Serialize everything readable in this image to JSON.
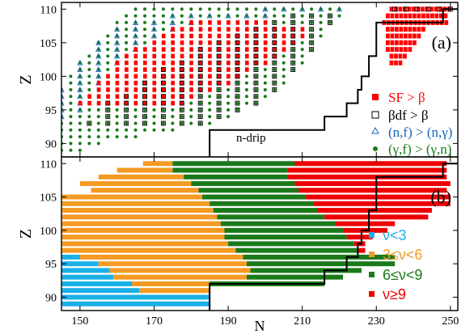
{
  "chart_data": [
    {
      "panel_label": "(a)",
      "type": "scatter",
      "xlabel": "",
      "ylabel": "Z",
      "xlim": [
        145,
        252
      ],
      "ylim": [
        88,
        111
      ],
      "yticks": [
        90,
        95,
        100,
        105,
        110
      ],
      "annotation": "n-drip",
      "legend_position": "right",
      "series": [
        {
          "name": "SF > β",
          "marker": "filled-square",
          "color": "#ff0000"
        },
        {
          "name": "βdf > β",
          "marker": "open-square",
          "color": "#000000"
        },
        {
          "name": "(n,f) > (n,γ)",
          "marker": "open-triangle",
          "color": "#1565c0"
        },
        {
          "name": "(γ,f) > (γ,n)",
          "marker": "filled-circle",
          "color": "#1a7a1a"
        }
      ],
      "region_rows": [
        {
          "z": 110,
          "green": [
            165,
            222
          ],
          "red": [],
          "open_sq": [],
          "tri": [
            200,
            222
          ]
        },
        {
          "z": 109,
          "green": [
            162,
            221
          ],
          "red": [],
          "open_sq": [
            205,
            221
          ],
          "tri": [
            175,
            200
          ]
        },
        {
          "z": 108,
          "green": [
            160,
            218
          ],
          "red": [
            180,
            200
          ],
          "open_sq": [
            200,
            218
          ],
          "tri": [
            162,
            180
          ]
        },
        {
          "z": 107,
          "green": [
            158,
            217
          ],
          "red": [
            175,
            212
          ],
          "open_sq": [
            195,
            217
          ],
          "tri": [
            160,
            175
          ]
        },
        {
          "z": 106,
          "green": [
            157,
            216
          ],
          "red": [
            172,
            210
          ],
          "open_sq": [
            190,
            216
          ],
          "tri": [
            158,
            172
          ]
        },
        {
          "z": 105,
          "green": [
            155,
            214
          ],
          "red": [
            168,
            208
          ],
          "open_sq": [
            185,
            214
          ],
          "tri": [
            155,
            168
          ]
        },
        {
          "z": 104,
          "green": [
            153,
            213
          ],
          "red": [
            165,
            206
          ],
          "open_sq": [
            182,
            213
          ],
          "tri": [
            153,
            165
          ]
        },
        {
          "z": 103,
          "green": [
            151,
            211
          ],
          "red": [
            162,
            203
          ],
          "open_sq": [
            178,
            211
          ],
          "tri": [
            151,
            162
          ]
        },
        {
          "z": 102,
          "green": [
            150,
            210
          ],
          "red": [
            160,
            200
          ],
          "open_sq": [
            175,
            210
          ],
          "tri": [
            150,
            160
          ]
        },
        {
          "z": 101,
          "green": [
            149,
            208
          ],
          "red": [
            158,
            197
          ],
          "open_sq": [
            172,
            208
          ],
          "tri": [
            149,
            158
          ]
        },
        {
          "z": 100,
          "green": [
            147,
            207
          ],
          "red": [
            156,
            194
          ],
          "open_sq": [
            169,
            207
          ],
          "tri": [
            147,
            156
          ]
        },
        {
          "z": 99,
          "green": [
            146,
            205
          ],
          "red": [
            155,
            190
          ],
          "open_sq": [
            166,
            205
          ],
          "tri": [
            146,
            155
          ]
        },
        {
          "z": 98,
          "green": [
            145,
            203
          ],
          "red": [
            153,
            186
          ],
          "open_sq": [
            163,
            203
          ],
          "tri": [
            145,
            153
          ]
        },
        {
          "z": 97,
          "green": [
            145,
            201
          ],
          "red": [
            152,
            182
          ],
          "open_sq": [
            160,
            201
          ],
          "tri": [
            145,
            152
          ]
        },
        {
          "z": 96,
          "green": [
            145,
            198
          ],
          "red": [
            150,
            178
          ],
          "open_sq": [
            157,
            198
          ],
          "tri": [
            145,
            150
          ]
        },
        {
          "z": 95,
          "green": [
            145,
            194
          ],
          "red": [],
          "open_sq": [
            155,
            194
          ],
          "tri": [
            145,
            150
          ]
        },
        {
          "z": 94,
          "green": [
            145,
            190
          ],
          "red": [],
          "open_sq": [
            153,
            190
          ],
          "tri": [
            145,
            148
          ]
        },
        {
          "z": 93,
          "green": [
            145,
            186
          ],
          "red": [],
          "open_sq": [
            152,
            186
          ],
          "tri": []
        },
        {
          "z": 92,
          "green": [
            145,
            175
          ],
          "red": [],
          "open_sq": [],
          "tri": []
        },
        {
          "z": 91,
          "green": [
            145,
            165
          ],
          "red": [],
          "open_sq": [],
          "tri": []
        },
        {
          "z": 90,
          "green": [
            145,
            155
          ],
          "red": [],
          "open_sq": [],
          "tri": []
        },
        {
          "z": 89,
          "green": [
            145,
            150
          ],
          "red": [],
          "open_sq": [],
          "tri": []
        }
      ],
      "right_rows": [
        {
          "z": 110,
          "red": [
            234,
            250
          ],
          "open_sq": [
            235,
            250
          ]
        },
        {
          "z": 109,
          "red": [
            233,
            249
          ],
          "open_sq": []
        },
        {
          "z": 108,
          "red": [
            232,
            249
          ],
          "open_sq": []
        },
        {
          "z": 107,
          "red": [
            233,
            243
          ],
          "open_sq": []
        },
        {
          "z": 106,
          "red": [
            233,
            242
          ],
          "open_sq": []
        },
        {
          "z": 105,
          "red": [
            233,
            241
          ],
          "open_sq": []
        },
        {
          "z": 104,
          "red": [
            233,
            240
          ],
          "open_sq": []
        },
        {
          "z": 103,
          "red": [
            234,
            238
          ],
          "open_sq": []
        },
        {
          "z": 102,
          "red": [
            234,
            237
          ],
          "open_sq": []
        }
      ],
      "ndrip_steps": [
        [
          185,
          88
        ],
        [
          185,
          92
        ],
        [
          216,
          92
        ],
        [
          216,
          94
        ],
        [
          222,
          94
        ],
        [
          222,
          96
        ],
        [
          225,
          96
        ],
        [
          225,
          98
        ],
        [
          226,
          98
        ],
        [
          226,
          100
        ],
        [
          228,
          100
        ],
        [
          228,
          103
        ],
        [
          230,
          103
        ],
        [
          230,
          108
        ],
        [
          248,
          108
        ],
        [
          248,
          110
        ],
        [
          252,
          110
        ]
      ]
    },
    {
      "panel_label": "(b)",
      "type": "bar",
      "orientation": "horizontal",
      "xlabel": "N",
      "ylabel": "Z",
      "xlim": [
        145,
        252
      ],
      "ylim": [
        88,
        111
      ],
      "xticks": [
        150,
        170,
        190,
        210,
        230,
        250
      ],
      "yticks": [
        90,
        95,
        100,
        105,
        110
      ],
      "legend_position": "right",
      "series": [
        {
          "name": "ν<3",
          "color": "#1ab0e8"
        },
        {
          "name": "3≤ν<6",
          "color": "#f59a23"
        },
        {
          "name": "6≤ν<9",
          "color": "#1a7a1a"
        },
        {
          "name": "ν≥9",
          "color": "#ee0000"
        }
      ],
      "rows": [
        {
          "z": 110,
          "start": 167,
          "b1": 167,
          "b2": 175,
          "b3": 208,
          "end": 249
        },
        {
          "z": 109,
          "start": 160,
          "b1": 160,
          "b2": 175,
          "b3": 206,
          "end": 249
        },
        {
          "z": 108,
          "start": 155,
          "b1": 155,
          "b2": 178,
          "b3": 206,
          "end": 249
        },
        {
          "z": 107,
          "start": 150,
          "b1": 150,
          "b2": 180,
          "b3": 208,
          "end": 250
        },
        {
          "z": 106,
          "start": 153,
          "b1": 153,
          "b2": 182,
          "b3": 209,
          "end": 249
        },
        {
          "z": 105,
          "start": 145,
          "b1": 145,
          "b2": 183,
          "b3": 211,
          "end": 250
        },
        {
          "z": 104,
          "start": 145,
          "b1": 145,
          "b2": 185,
          "b3": 213,
          "end": 250
        },
        {
          "z": 103,
          "start": 145,
          "b1": 145,
          "b2": 186,
          "b3": 214,
          "end": 245
        },
        {
          "z": 102,
          "start": 145,
          "b1": 145,
          "b2": 187,
          "b3": 216,
          "end": 244
        },
        {
          "z": 101,
          "start": 145,
          "b1": 145,
          "b2": 188,
          "b3": 219,
          "end": 235
        },
        {
          "z": 100,
          "start": 145,
          "b1": 145,
          "b2": 189,
          "b3": 221,
          "end": 233
        },
        {
          "z": 99,
          "start": 145,
          "b1": 145,
          "b2": 189,
          "b3": 222,
          "end": 229
        },
        {
          "z": 98,
          "start": 145,
          "b1": 145,
          "b2": 190,
          "b3": 224,
          "end": 227
        },
        {
          "z": 97,
          "start": 145,
          "b1": 145,
          "b2": 192,
          "b3": 225,
          "end": 227
        },
        {
          "z": 96,
          "start": 145,
          "b1": 150,
          "b2": 194,
          "b3": 235,
          "end": 235
        },
        {
          "z": 95,
          "start": 145,
          "b1": 155,
          "b2": 195,
          "b3": 235,
          "end": 235
        },
        {
          "z": 94,
          "start": 145,
          "b1": 158,
          "b2": 196,
          "b3": 226,
          "end": 226
        },
        {
          "z": 93,
          "start": 145,
          "b1": 159,
          "b2": 195,
          "b3": 221,
          "end": 221
        },
        {
          "z": 92,
          "start": 145,
          "b1": 164,
          "b2": 185,
          "b3": 216,
          "end": 216
        },
        {
          "z": 91,
          "start": 145,
          "b1": 166,
          "b2": 185,
          "b3": 185,
          "end": 185
        },
        {
          "z": 90,
          "start": 145,
          "b1": 185,
          "b2": 185,
          "b3": 185,
          "end": 185
        },
        {
          "z": 89,
          "start": 145,
          "b1": 185,
          "b2": 185,
          "b3": 185,
          "end": 185
        }
      ],
      "ndrip_steps": [
        [
          185,
          88
        ],
        [
          185,
          92
        ],
        [
          216,
          92
        ],
        [
          216,
          94
        ],
        [
          222,
          94
        ],
        [
          222,
          96
        ],
        [
          225,
          96
        ],
        [
          225,
          98
        ],
        [
          226,
          98
        ],
        [
          226,
          100
        ],
        [
          228,
          100
        ],
        [
          228,
          103
        ],
        [
          230,
          103
        ],
        [
          230,
          108
        ],
        [
          248,
          108
        ],
        [
          248,
          110
        ],
        [
          252,
          110
        ]
      ]
    }
  ]
}
